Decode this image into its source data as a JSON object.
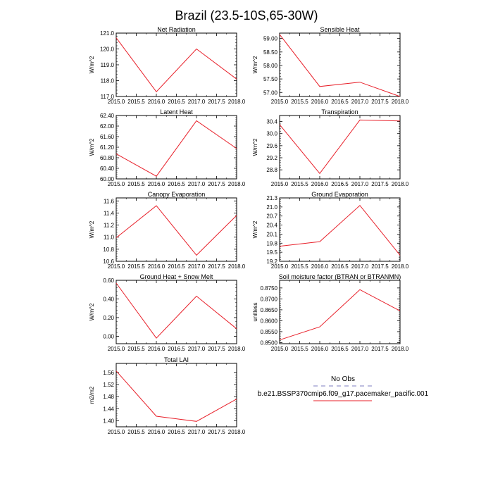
{
  "title": "Brazil (23.5-10S,65-30W)",
  "colors": {
    "model_line": "#e8202a",
    "obs_line": "#a9a9d6",
    "axis": "#000000"
  },
  "x_ticks": [
    "2015.0",
    "2015.5",
    "2016.0",
    "2016.5",
    "2017.0",
    "2017.5",
    "2018.0"
  ],
  "legend": {
    "obs_label": "No Obs",
    "model_label": "b.e21.BSSP370cmip6.f09_g17.pacemaker_pacific.001"
  },
  "chart_data": [
    {
      "type": "line",
      "title": "Net Radiation",
      "ylabel": "W/m^2",
      "x": [
        2015,
        2016,
        2017,
        2018
      ],
      "xlim": [
        2015,
        2018
      ],
      "values": [
        120.7,
        117.3,
        120.0,
        118.1
      ],
      "ylim": [
        117.0,
        121.0
      ],
      "y_ticks": [
        "117.0",
        "118.0",
        "119.0",
        "120.0",
        "121.0"
      ],
      "y_tick_values": [
        117,
        118,
        119,
        120,
        121
      ]
    },
    {
      "type": "line",
      "title": "Sensible Heat",
      "ylabel": "W/m^2",
      "x": [
        2015,
        2016,
        2017,
        2018
      ],
      "xlim": [
        2015,
        2018
      ],
      "values": [
        59.15,
        57.22,
        57.38,
        56.85
      ],
      "ylim": [
        56.85,
        59.2
      ],
      "y_ticks": [
        "57.00",
        "57.50",
        "58.00",
        "58.50",
        "59.00"
      ],
      "y_tick_values": [
        57,
        57.5,
        58,
        58.5,
        59
      ]
    },
    {
      "type": "line",
      "title": "Latent Heat",
      "ylabel": "W/m^2",
      "x": [
        2015,
        2016,
        2017,
        2018
      ],
      "xlim": [
        2015,
        2018
      ],
      "values": [
        60.95,
        60.1,
        62.2,
        61.15
      ],
      "ylim": [
        60.0,
        62.4
      ],
      "y_ticks": [
        "60.00",
        "60.40",
        "60.80",
        "61.20",
        "61.60",
        "62.00",
        "62.40"
      ],
      "y_tick_values": [
        60,
        60.4,
        60.8,
        61.2,
        61.6,
        62,
        62.4
      ]
    },
    {
      "type": "line",
      "title": "Transpiration",
      "ylabel": "W/m^2",
      "x": [
        2015,
        2016,
        2017,
        2018
      ],
      "xlim": [
        2015,
        2018
      ],
      "values": [
        30.3,
        28.68,
        30.45,
        30.42
      ],
      "ylim": [
        28.5,
        30.6
      ],
      "y_ticks": [
        "28.8",
        "29.2",
        "29.6",
        "30.0",
        "30.4"
      ],
      "y_tick_values": [
        28.8,
        29.2,
        29.6,
        30,
        30.4
      ]
    },
    {
      "type": "line",
      "title": "Canopy Evaporation",
      "ylabel": "W/m^2",
      "x": [
        2015,
        2016,
        2017,
        2018
      ],
      "xlim": [
        2015,
        2018
      ],
      "values": [
        10.99,
        11.52,
        10.7,
        11.36
      ],
      "ylim": [
        10.6,
        11.65
      ],
      "y_ticks": [
        "10.6",
        "10.8",
        "11.0",
        "11.2",
        "11.4",
        "11.6"
      ],
      "y_tick_values": [
        10.6,
        10.8,
        11,
        11.2,
        11.4,
        11.6
      ]
    },
    {
      "type": "line",
      "title": "Ground Evaporation",
      "ylabel": "W/m^2",
      "x": [
        2015,
        2016,
        2017,
        2018
      ],
      "xlim": [
        2015,
        2018
      ],
      "values": [
        19.7,
        19.85,
        21.05,
        19.4
      ],
      "ylim": [
        19.2,
        21.3
      ],
      "y_ticks": [
        "19.2",
        "19.5",
        "19.8",
        "20.1",
        "20.4",
        "20.7",
        "21.0",
        "21.3"
      ],
      "y_tick_values": [
        19.2,
        19.5,
        19.8,
        20.1,
        20.4,
        20.7,
        21.0,
        21.3
      ]
    },
    {
      "type": "line",
      "title": "Ground Heat + Snow Melt",
      "ylabel": "W/m^2",
      "x": [
        2015,
        2016,
        2017,
        2018
      ],
      "xlim": [
        2015,
        2018
      ],
      "values": [
        0.57,
        -0.02,
        0.43,
        0.08
      ],
      "ylim": [
        -0.08,
        0.6
      ],
      "y_ticks": [
        "0.00",
        "0.20",
        "0.40",
        "0.60"
      ],
      "y_tick_values": [
        0,
        0.2,
        0.4,
        0.6
      ]
    },
    {
      "type": "line",
      "title": "Soil moisture factor (BTRAN or BTRANMN)",
      "ylabel": "unitless",
      "x": [
        2015,
        2016,
        2017,
        2018
      ],
      "xlim": [
        2015,
        2018
      ],
      "values": [
        0.8512,
        0.8572,
        0.8742,
        0.8645
      ],
      "ylim": [
        0.8495,
        0.8785
      ],
      "y_ticks": [
        "0.8500",
        "0.8550",
        "0.8600",
        "0.8650",
        "0.8700",
        "0.8750"
      ],
      "y_tick_values": [
        0.85,
        0.855,
        0.86,
        0.865,
        0.87,
        0.875
      ]
    },
    {
      "type": "line",
      "title": "Total LAI",
      "ylabel": "m2/m2",
      "x": [
        2015,
        2016,
        2017,
        2018
      ],
      "xlim": [
        2015,
        2018
      ],
      "values": [
        1.565,
        1.415,
        1.398,
        1.472
      ],
      "ylim": [
        1.38,
        1.59
      ],
      "y_ticks": [
        "1.40",
        "1.44",
        "1.48",
        "1.52",
        "1.56"
      ],
      "y_tick_values": [
        1.4,
        1.44,
        1.48,
        1.52,
        1.56
      ]
    }
  ]
}
